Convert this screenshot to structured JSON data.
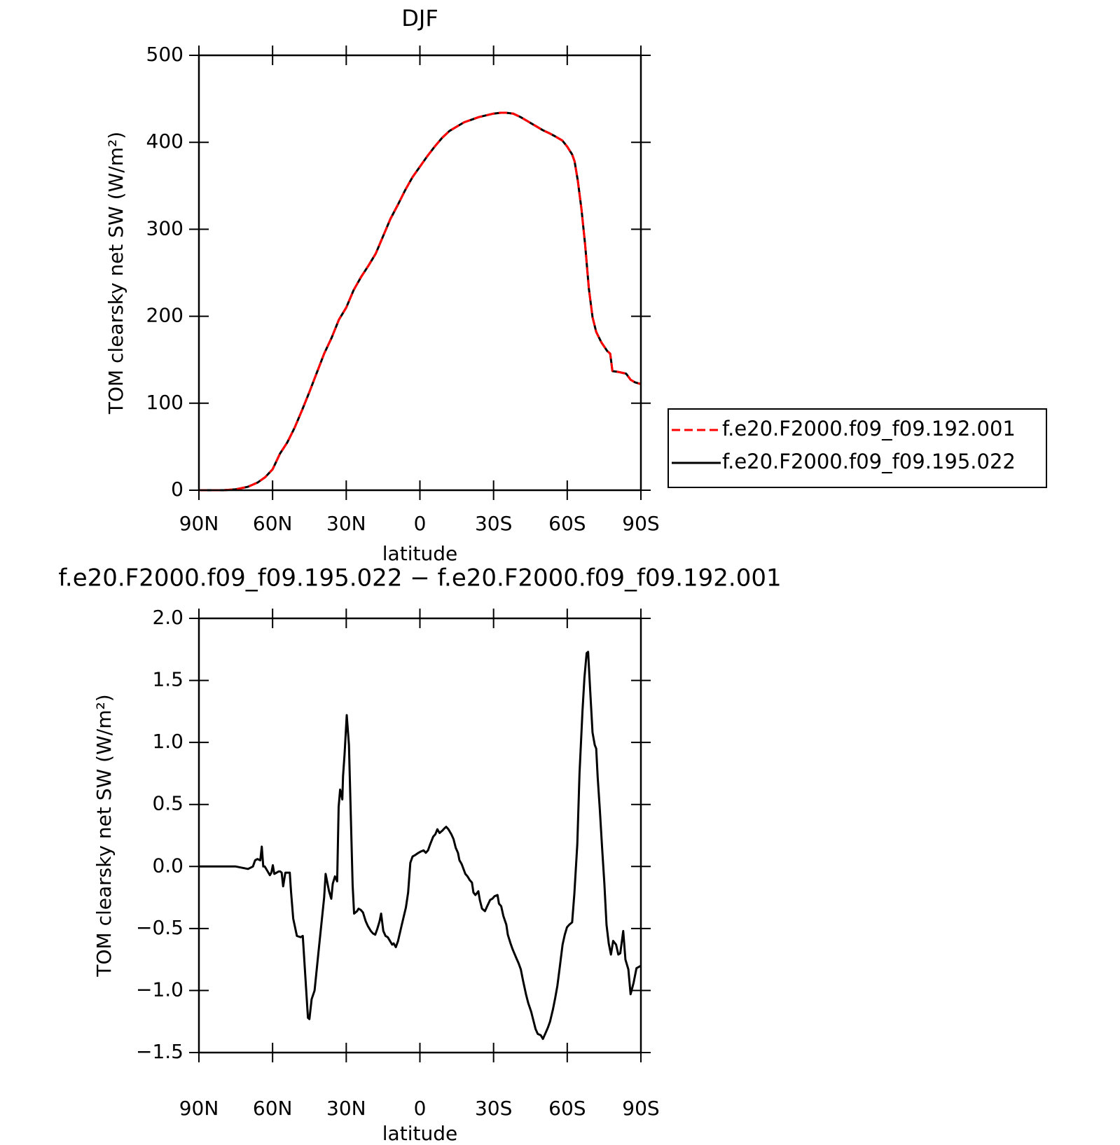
{
  "chart_data": [
    {
      "type": "line",
      "title": "DJF",
      "xlabel": "latitude",
      "ylabel": "TOM clearsky net SW (W/m²)",
      "xlim": [
        90,
        -90
      ],
      "ylim": [
        0,
        500
      ],
      "xticks": [
        {
          "value": 90,
          "label": "90N"
        },
        {
          "value": 60,
          "label": "60N"
        },
        {
          "value": 30,
          "label": "30N"
        },
        0,
        {
          "value": -30,
          "label": "30S"
        },
        {
          "value": -60,
          "label": "60S"
        },
        {
          "value": -90,
          "label": "90S"
        }
      ],
      "yticks": [
        0,
        100,
        200,
        300,
        400,
        500
      ],
      "legend": "right",
      "x": [
        90,
        80,
        75,
        70,
        66,
        63,
        60,
        57,
        54,
        51,
        48,
        45,
        42,
        39,
        36,
        33,
        30,
        27,
        24,
        21,
        18,
        15,
        12,
        9,
        6,
        3,
        0,
        -3,
        -6,
        -9,
        -12,
        -15,
        -18,
        -21,
        -24,
        -27,
        -30,
        -33,
        -35,
        -38,
        -41,
        -44,
        -47,
        -50,
        -53,
        -55,
        -58,
        -60,
        -62,
        -63,
        -64.3,
        -65.8,
        -67.3,
        -68.8,
        -70.3,
        -71.8,
        -73.9,
        -76.3,
        -77.5,
        -78.4,
        -80.8,
        -84,
        -85.8,
        -87.6,
        -90
      ],
      "series": [
        {
          "name": "f.e20.F2000.f09_f09.192.001",
          "color": "#ff0000",
          "dashed": true,
          "values": [
            0,
            0,
            1,
            4,
            9,
            15,
            24,
            42,
            55,
            72,
            92,
            113,
            135,
            157,
            175,
            196,
            210,
            230,
            245,
            258,
            272,
            292,
            312,
            328,
            345,
            360,
            372,
            384,
            395,
            405,
            413,
            418,
            423,
            426,
            429,
            431,
            433,
            434,
            434,
            433,
            429,
            424,
            419,
            414,
            410,
            407,
            402,
            395,
            386,
            378,
            356,
            323,
            282,
            232,
            199,
            182,
            170,
            160,
            157,
            137,
            136,
            134,
            127,
            124,
            122
          ]
        },
        {
          "name": "f.e20.F2000.f09_f09.195.022",
          "color": "#000000",
          "dashed": false,
          "values": [
            0,
            0,
            1,
            4,
            9,
            15,
            24,
            42,
            55,
            72,
            92,
            113,
            135,
            157,
            175,
            196,
            210,
            230,
            245,
            258,
            272,
            292,
            312,
            328,
            345,
            360,
            372,
            384,
            395,
            405,
            413,
            418,
            423,
            426,
            429,
            431,
            433,
            434,
            434,
            433,
            429,
            424,
            419,
            414,
            410,
            407,
            402,
            395,
            386,
            378,
            356,
            323,
            282,
            232,
            199,
            182,
            170,
            160,
            157,
            137,
            136,
            134,
            127,
            124,
            122
          ]
        }
      ]
    },
    {
      "type": "line",
      "title": "f.e20.F2000.f09_f09.195.022 − f.e20.F2000.f09_f09.192.001",
      "xlabel": "latitude",
      "ylabel": "TOM clearsky net SW (W/m²)",
      "xlim": [
        90,
        -90
      ],
      "ylim": [
        -1.5,
        2.0
      ],
      "xticks": [
        {
          "value": 90,
          "label": "90N"
        },
        {
          "value": 60,
          "label": "60N"
        },
        {
          "value": 30,
          "label": "30N"
        },
        0,
        {
          "value": -30,
          "label": "30S"
        },
        {
          "value": -60,
          "label": "60S"
        },
        {
          "value": -90,
          "label": "90S"
        }
      ],
      "yticks": [
        {
          "value": -1.5,
          "label": "−1.5"
        },
        {
          "value": -1.0,
          "label": "−1.0"
        },
        {
          "value": -0.5,
          "label": "−0.5"
        },
        {
          "value": 0,
          "label": "0.0"
        },
        0.5,
        {
          "value": 1.0,
          "label": "1.0"
        },
        1.5,
        {
          "value": 2.0,
          "label": "2.0"
        }
      ],
      "x": [
        90,
        75,
        70,
        68,
        67.1,
        66.2,
        65,
        64.4,
        63.8,
        63.2,
        61.1,
        60.5,
        59.9,
        59.3,
        58.4,
        57.5,
        56.9,
        56.3,
        55.7,
        54.8,
        53.9,
        53,
        52.5,
        51.6,
        50.1,
        48.6,
        47.7,
        45.6,
        45,
        44.1,
        42.9,
        41.1,
        39,
        38.4,
        37,
        36.1,
        35.5,
        34.6,
        33.7,
        33.1,
        32.5,
        31.6,
        31.3,
        30.7,
        29.8,
        28.9,
        27.4,
        26.8,
        25.6,
        25,
        24.1,
        23.2,
        22.1,
        21.2,
        20,
        19.1,
        18.2,
        17.3,
        16.4,
        15.8,
        14.9,
        14,
        13.1,
        12.2,
        11.3,
        10.7,
        9.8,
        8.9,
        7.5,
        5.7,
        4.8,
        3.9,
        3,
        2.1,
        0.6,
        -0.3,
        -1.5,
        -2.4,
        -3.3,
        -4.2,
        -5.4,
        -6.3,
        -7.1,
        -8,
        -9.2,
        -10.1,
        -10.7,
        -11.6,
        -12.8,
        -13.7,
        -14.6,
        -15.5,
        -16.1,
        -17,
        -18.5,
        -19.4,
        -20.3,
        -21.2,
        -21.8,
        -22.6,
        -23.8,
        -24.4,
        -25.3,
        -26.5,
        -27.4,
        -28.6,
        -29.5,
        -30.4,
        -31.6,
        -32.2,
        -33.1,
        -34,
        -35.2,
        -35.8,
        -36.9,
        -37.8,
        -39.3,
        -40.2,
        -41.1,
        -42,
        -43.2,
        -44.1,
        -45.3,
        -46.2,
        -47.1,
        -48,
        -49.2,
        -50.1,
        -51,
        -52.1,
        -53,
        -54.2,
        -55.1,
        -56,
        -56.9,
        -58.1,
        -59,
        -59.9,
        -60.8,
        -62,
        -62.9,
        -64.1,
        -65,
        -66.2,
        -67,
        -67.9,
        -68.5,
        -69.4,
        -70.3,
        -71.2,
        -71.8,
        -72.4,
        -73.3,
        -74.2,
        -75.1,
        -76,
        -76.9,
        -77.8,
        -78.7,
        -79.9,
        -80.8,
        -81.6,
        -82.8,
        -83.7,
        -84.9,
        -85.8,
        -87,
        -88.2,
        -90
      ],
      "series": [
        {
          "color": "#000000",
          "dashed": false,
          "values": [
            0,
            0,
            -0.02,
            0,
            0.05,
            0.06,
            0.05,
            0.16,
            0,
            0,
            -0.07,
            -0.05,
            0.01,
            -0.06,
            -0.05,
            -0.04,
            -0.04,
            -0.05,
            -0.16,
            -0.05,
            -0.05,
            -0.05,
            -0.2,
            -0.42,
            -0.56,
            -0.57,
            -0.56,
            -1.22,
            -1.23,
            -1.07,
            -1,
            -0.65,
            -0.25,
            -0.06,
            -0.2,
            -0.26,
            -0.14,
            -0.08,
            -0.12,
            0.48,
            0.62,
            0.54,
            0.73,
            0.9,
            1.22,
            0.98,
            -0.15,
            -0.38,
            -0.36,
            -0.34,
            -0.35,
            -0.37,
            -0.44,
            -0.48,
            -0.52,
            -0.54,
            -0.55,
            -0.5,
            -0.44,
            -0.38,
            -0.52,
            -0.56,
            -0.57,
            -0.6,
            -0.63,
            -0.62,
            -0.65,
            -0.6,
            -0.48,
            -0.33,
            -0.21,
            0.03,
            0.08,
            0.09,
            0.11,
            0.12,
            0.13,
            0.11,
            0.13,
            0.18,
            0.24,
            0.26,
            0.3,
            0.27,
            0.29,
            0.31,
            0.32,
            0.3,
            0.26,
            0.22,
            0.15,
            0.11,
            0.05,
            0.02,
            -0.06,
            -0.08,
            -0.11,
            -0.13,
            -0.21,
            -0.23,
            -0.2,
            -0.27,
            -0.34,
            -0.36,
            -0.32,
            -0.27,
            -0.26,
            -0.24,
            -0.23,
            -0.3,
            -0.32,
            -0.4,
            -0.47,
            -0.55,
            -0.62,
            -0.67,
            -0.74,
            -0.78,
            -0.83,
            -0.92,
            -1.03,
            -1.1,
            -1.17,
            -1.24,
            -1.31,
            -1.35,
            -1.36,
            -1.39,
            -1.35,
            -1.3,
            -1.25,
            -1.15,
            -1.06,
            -0.96,
            -0.82,
            -0.63,
            -0.55,
            -0.49,
            -0.47,
            -0.45,
            -0.22,
            0.18,
            0.75,
            1.25,
            1.52,
            1.72,
            1.73,
            1.4,
            1.08,
            0.98,
            0.95,
            0.72,
            0.45,
            0.15,
            -0.13,
            -0.47,
            -0.62,
            -0.71,
            -0.6,
            -0.63,
            -0.71,
            -0.7,
            -0.52,
            -0.75,
            -0.83,
            -1.03,
            -0.94,
            -0.82,
            -0.8
          ]
        }
      ]
    }
  ]
}
